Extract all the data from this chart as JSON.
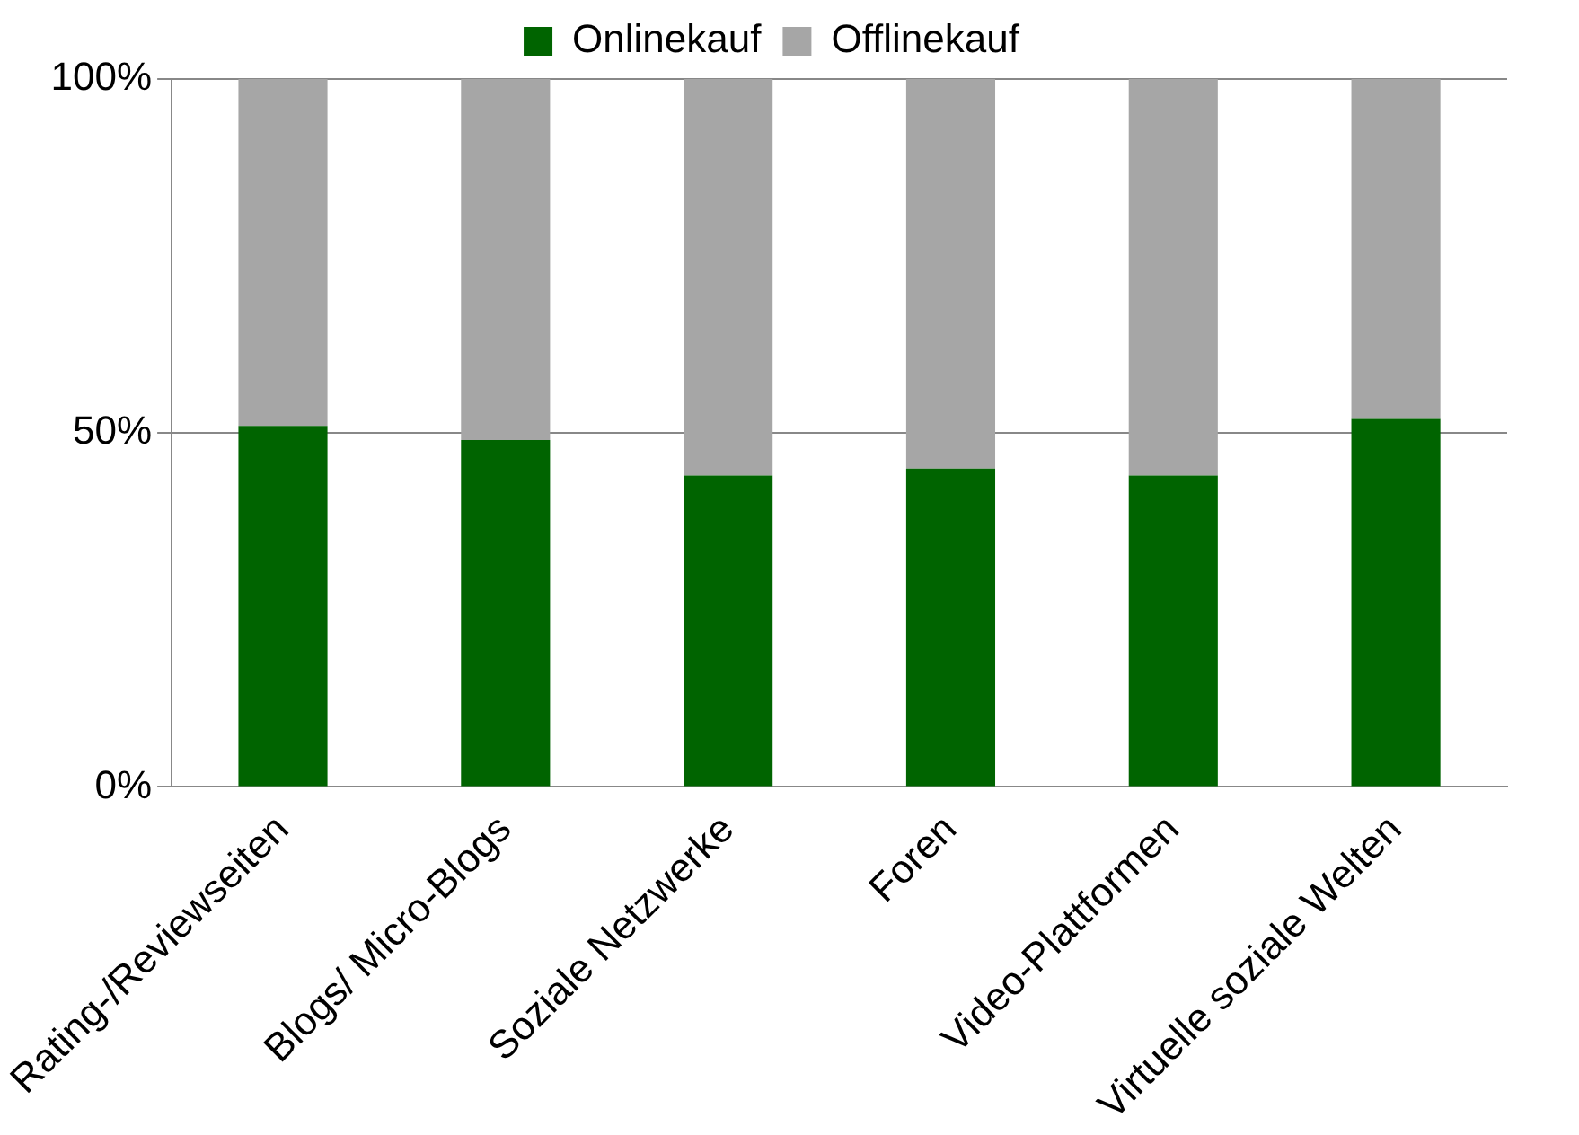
{
  "chart_data": {
    "type": "bar",
    "stacked": true,
    "categories": [
      "Rating-/Reviewseiten",
      "Blogs/ Micro-Blogs",
      "Soziale Netzwerke",
      "Foren",
      "Video-Plattformen",
      "Virtuelle soziale Welten"
    ],
    "series": [
      {
        "name": "Onlinekauf",
        "color": "#006400",
        "values": [
          51,
          49,
          44,
          45,
          44,
          52
        ]
      },
      {
        "name": "Offlinekauf",
        "color": "#a6a6a6",
        "values": [
          49,
          51,
          56,
          55,
          56,
          48
        ]
      }
    ],
    "ylim": [
      0,
      100
    ],
    "yticks": [
      {
        "value": 0,
        "label": "0%"
      },
      {
        "value": 50,
        "label": "50%"
      },
      {
        "value": 100,
        "label": "100%"
      }
    ],
    "grid": "y",
    "legend": "top"
  }
}
